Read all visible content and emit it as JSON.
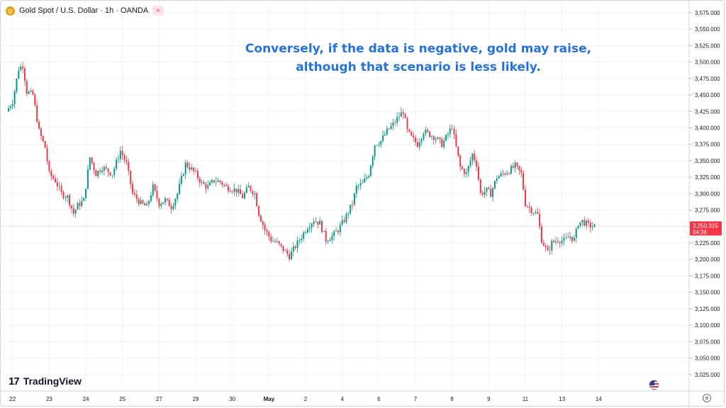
{
  "header": {
    "title": "Gold Spot / U.S. Dollar · 1h · OANDA",
    "logo_icon": "gold-coin-icon",
    "badge_icon": "approximation-icon",
    "badge_symbol": "≈"
  },
  "annotation": {
    "line1": "Conversely, if the data is negative, gold may raise,",
    "line2": "although that scenario is less likely."
  },
  "watermark": {
    "mark": "17",
    "text": "TradingView"
  },
  "colors": {
    "up": "#089981",
    "down": "#f23645",
    "annotation": "#2672d8",
    "price_line": "#f23645"
  },
  "chart_data": {
    "type": "candlestick",
    "symbol": "Gold Spot / U.S. Dollar",
    "interval": "1h",
    "source": "OANDA",
    "ylim": [
      3000,
      3590
    ],
    "y_ticks": [
      3025,
      3050,
      3075,
      3100,
      3125,
      3150,
      3175,
      3200,
      3225,
      3250,
      3275,
      3300,
      3325,
      3350,
      3375,
      3400,
      3425,
      3450,
      3475,
      3500,
      3525,
      3550,
      3575
    ],
    "y_tick_labels": [
      "3,025.000",
      "3,050.000",
      "3,075.000",
      "3,100.000",
      "3,125.000",
      "3,150.000",
      "3,175.000",
      "3,200.000",
      "3,225.000",
      "3,250.000",
      "3,275.000",
      "3,300.000",
      "3,325.000",
      "3,350.000",
      "3,375.000",
      "3,400.000",
      "3,425.000",
      "3,450.000",
      "3,475.000",
      "3,500.000",
      "3,525.000",
      "3,550.000",
      "3,575.000"
    ],
    "x_ticks": [
      {
        "label": "22",
        "index": 2,
        "bold": false
      },
      {
        "label": "23",
        "index": 20,
        "bold": false
      },
      {
        "label": "24",
        "index": 38,
        "bold": false
      },
      {
        "label": "25",
        "index": 56,
        "bold": false
      },
      {
        "label": "27",
        "index": 74,
        "bold": false
      },
      {
        "label": "29",
        "index": 92,
        "bold": false
      },
      {
        "label": "30",
        "index": 110,
        "bold": false
      },
      {
        "label": "May",
        "index": 128,
        "bold": true
      },
      {
        "label": "2",
        "index": 146,
        "bold": false
      },
      {
        "label": "4",
        "index": 164,
        "bold": false
      },
      {
        "label": "6",
        "index": 182,
        "bold": false
      },
      {
        "label": "7",
        "index": 200,
        "bold": false
      },
      {
        "label": "8",
        "index": 218,
        "bold": false
      },
      {
        "label": "9",
        "index": 236,
        "bold": false
      },
      {
        "label": "11",
        "index": 254,
        "bold": false
      },
      {
        "label": "13",
        "index": 272,
        "bold": false
      },
      {
        "label": "14",
        "index": 290,
        "bold": false
      }
    ],
    "anchors": [
      [
        0,
        3425
      ],
      [
        3,
        3440
      ],
      [
        6,
        3490
      ],
      [
        8,
        3495
      ],
      [
        10,
        3455
      ],
      [
        13,
        3450
      ],
      [
        16,
        3395
      ],
      [
        19,
        3370
      ],
      [
        21,
        3330
      ],
      [
        24,
        3320
      ],
      [
        27,
        3300
      ],
      [
        30,
        3295
      ],
      [
        33,
        3270
      ],
      [
        35,
        3282
      ],
      [
        38,
        3290
      ],
      [
        41,
        3355
      ],
      [
        44,
        3330
      ],
      [
        47,
        3340
      ],
      [
        52,
        3330
      ],
      [
        56,
        3365
      ],
      [
        59,
        3345
      ],
      [
        62,
        3300
      ],
      [
        66,
        3285
      ],
      [
        69,
        3280
      ],
      [
        72,
        3310
      ],
      [
        75,
        3285
      ],
      [
        78,
        3290
      ],
      [
        81,
        3280
      ],
      [
        84,
        3300
      ],
      [
        88,
        3345
      ],
      [
        90,
        3340
      ],
      [
        93,
        3330
      ],
      [
        96,
        3315
      ],
      [
        99,
        3310
      ],
      [
        102,
        3320
      ],
      [
        105,
        3318
      ],
      [
        108,
        3310
      ],
      [
        113,
        3305
      ],
      [
        116,
        3295
      ],
      [
        119,
        3310
      ],
      [
        122,
        3300
      ],
      [
        124,
        3270
      ],
      [
        127,
        3245
      ],
      [
        130,
        3230
      ],
      [
        133,
        3225
      ],
      [
        136,
        3215
      ],
      [
        139,
        3205
      ],
      [
        142,
        3220
      ],
      [
        145,
        3235
      ],
      [
        148,
        3250
      ],
      [
        151,
        3260
      ],
      [
        154,
        3255
      ],
      [
        157,
        3230
      ],
      [
        160,
        3235
      ],
      [
        163,
        3245
      ],
      [
        166,
        3260
      ],
      [
        170,
        3285
      ],
      [
        172,
        3310
      ],
      [
        175,
        3315
      ],
      [
        178,
        3330
      ],
      [
        181,
        3375
      ],
      [
        184,
        3380
      ],
      [
        187,
        3395
      ],
      [
        190,
        3405
      ],
      [
        193,
        3418
      ],
      [
        195,
        3425
      ],
      [
        197,
        3395
      ],
      [
        199,
        3385
      ],
      [
        202,
        3375
      ],
      [
        205,
        3395
      ],
      [
        208,
        3390
      ],
      [
        211,
        3385
      ],
      [
        214,
        3375
      ],
      [
        216,
        3385
      ],
      [
        219,
        3402
      ],
      [
        221,
        3370
      ],
      [
        223,
        3340
      ],
      [
        226,
        3330
      ],
      [
        229,
        3360
      ],
      [
        231,
        3345
      ],
      [
        233,
        3300
      ],
      [
        236,
        3305
      ],
      [
        238,
        3300
      ],
      [
        241,
        3325
      ],
      [
        244,
        3330
      ],
      [
        247,
        3335
      ],
      [
        250,
        3342
      ],
      [
        253,
        3330
      ],
      [
        255,
        3285
      ],
      [
        258,
        3275
      ],
      [
        261,
        3268
      ],
      [
        263,
        3230
      ],
      [
        266,
        3210
      ],
      [
        268,
        3225
      ],
      [
        271,
        3230
      ],
      [
        274,
        3228
      ],
      [
        277,
        3235
      ],
      [
        279,
        3230
      ],
      [
        281,
        3255
      ],
      [
        283,
        3258
      ],
      [
        286,
        3252
      ],
      [
        288,
        3250
      ]
    ],
    "last_price": 3250.315,
    "last_price_label": "3,250.315",
    "countdown_label": "04:36"
  }
}
